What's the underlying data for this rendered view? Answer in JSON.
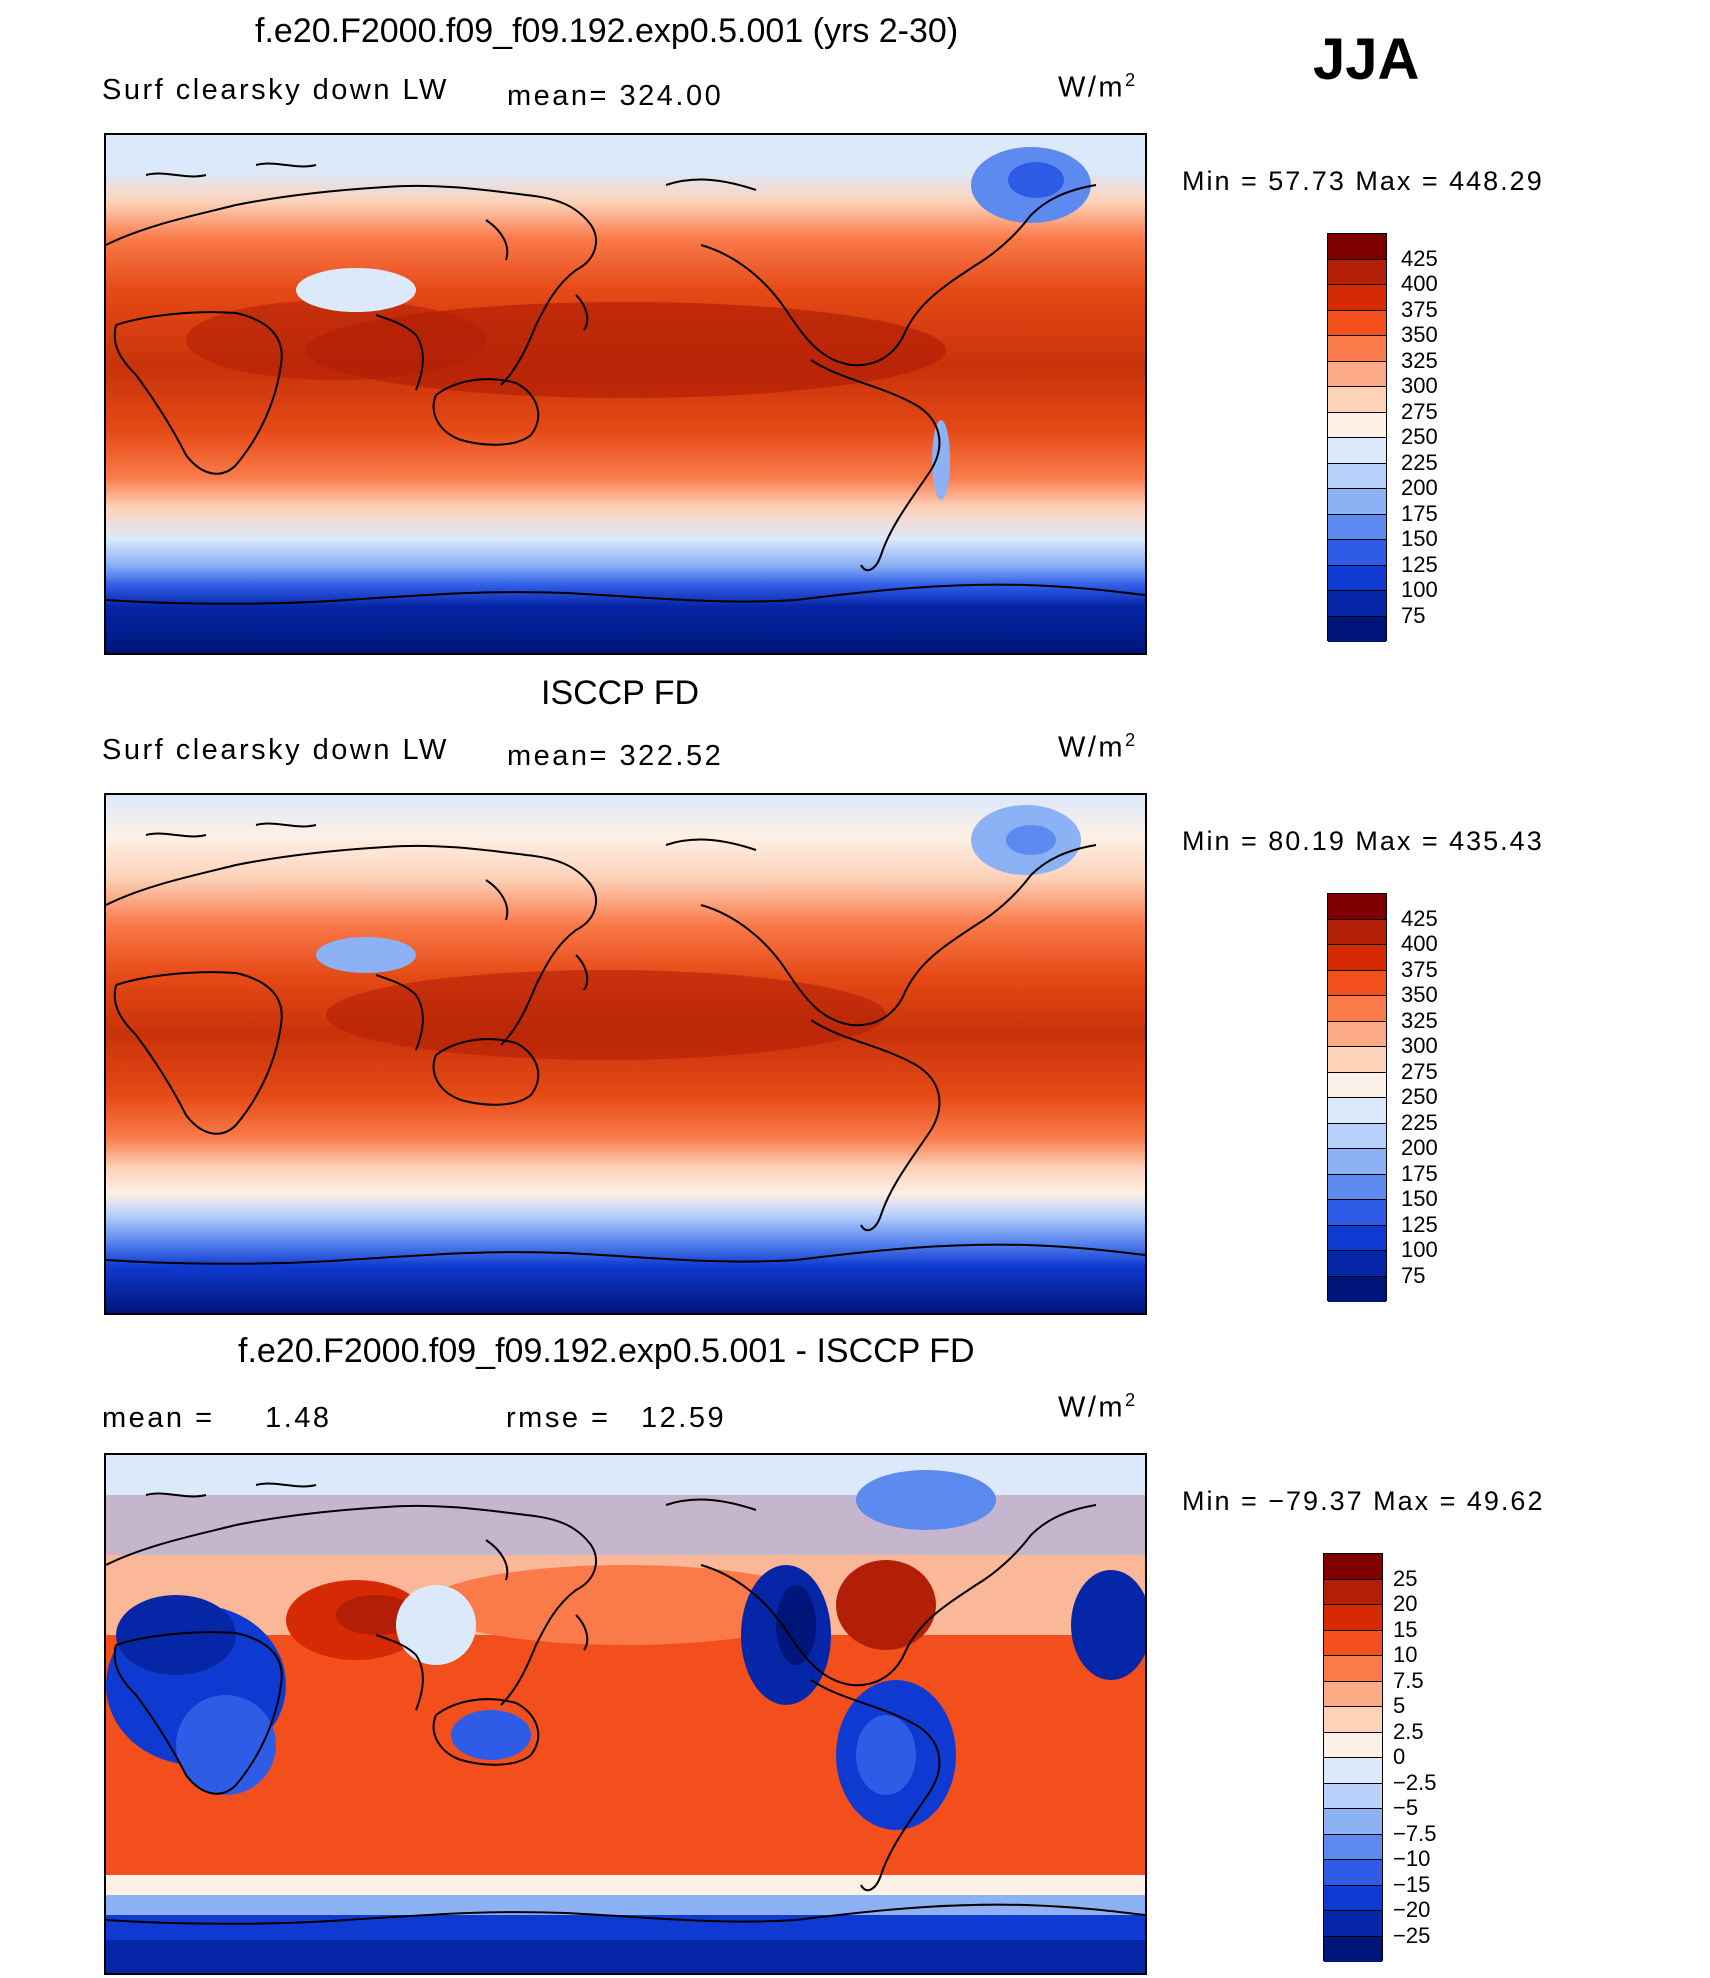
{
  "season": "JJA",
  "units": "W/m",
  "units_sup": "2",
  "panels": [
    {
      "title": "f.e20.F2000.f09_f09.192.exp0.5.001 (yrs 2-30)",
      "left_label": "Surf clearsky down LW",
      "stat_label": "mean=",
      "stat_value": "324.00",
      "minmax": "Min =   57.73 Max = 448.29",
      "colorbar_labels": [
        "425",
        "400",
        "375",
        "350",
        "325",
        "300",
        "275",
        "250",
        "225",
        "200",
        "175",
        "150",
        "125",
        "100",
        "75"
      ]
    },
    {
      "title": "ISCCP FD",
      "left_label": "Surf clearsky down LW",
      "stat_label": "mean=",
      "stat_value": "322.52",
      "minmax": "Min =   80.19 Max = 435.43",
      "colorbar_labels": [
        "425",
        "400",
        "375",
        "350",
        "325",
        "300",
        "275",
        "250",
        "225",
        "200",
        "175",
        "150",
        "125",
        "100",
        "75"
      ]
    },
    {
      "title": "f.e20.F2000.f09_f09.192.exp0.5.001 - ISCCP FD",
      "left_label": "mean =",
      "left_value": "1.48",
      "stat_label": "rmse =",
      "stat_value": "12.59",
      "minmax": "Min = −79.37 Max =   49.62",
      "colorbar_labels": [
        "25",
        "20",
        "15",
        "10",
        "7.5",
        "5",
        "2.5",
        "0",
        "−2.5",
        "−5",
        "−7.5",
        "−10",
        "−15",
        "−20",
        "−25"
      ]
    }
  ],
  "colors": {
    "abs_scale": [
      "#7f0000",
      "#b21f06",
      "#d62a04",
      "#f24f1c",
      "#fa7a4a",
      "#fcab86",
      "#fdd2b9",
      "#fdf0e6",
      "#dce9fb",
      "#b9d0fa",
      "#8cb1f5",
      "#5d8aef",
      "#2f5ce6",
      "#0f3ad1",
      "#0626a8",
      "#00157a"
    ],
    "diff_scale": [
      "#7f0000",
      "#b21f06",
      "#d62a04",
      "#f24f1c",
      "#fa7a4a",
      "#fcab86",
      "#fdd2b9",
      "#fdf0e6",
      "#dce9fb",
      "#b9d0fa",
      "#8cb1f5",
      "#5d8aef",
      "#2f5ce6",
      "#0f3ad1",
      "#0626a8",
      "#00157a"
    ],
    "coast": "#000000"
  }
}
